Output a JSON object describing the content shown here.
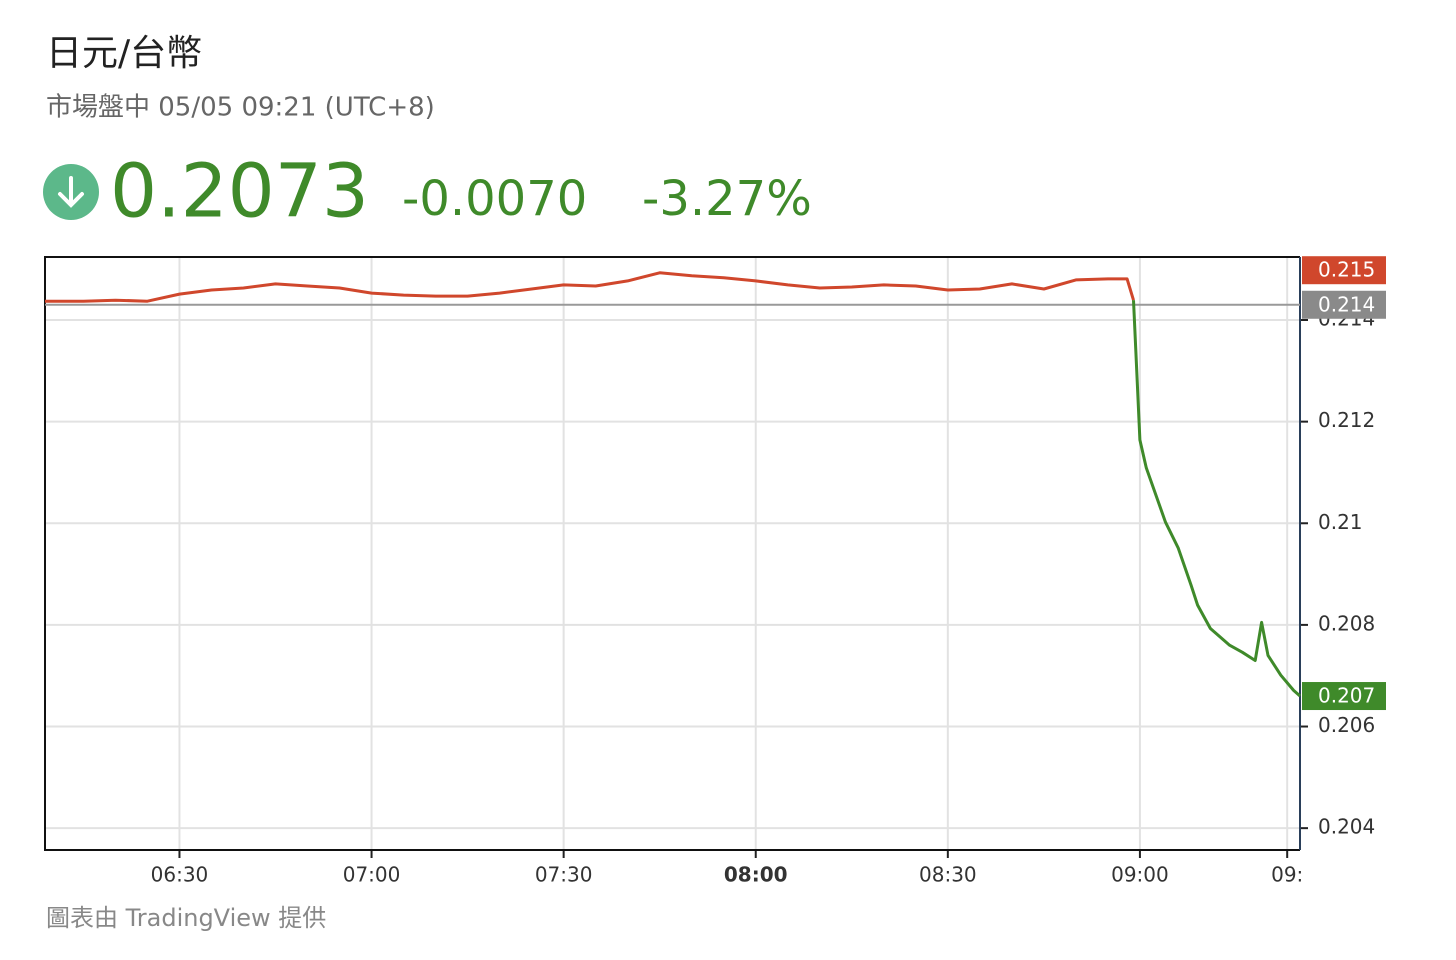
{
  "header": {
    "title": "日元/台幣",
    "subtitle": "市場盤中 05/05 09:21 (UTC+8)",
    "price": "0.2073",
    "change": "-0.0070",
    "change_percent": "-3.27%"
  },
  "chart_data": {
    "type": "line",
    "x": [
      "06:09",
      "06:15",
      "06:20",
      "06:25",
      "06:30",
      "06:35",
      "06:40",
      "06:45",
      "06:50",
      "06:55",
      "07:00",
      "07:05",
      "07:10",
      "07:15",
      "07:20",
      "07:25",
      "07:30",
      "07:35",
      "07:40",
      "07:45",
      "07:50",
      "07:55",
      "08:00",
      "08:05",
      "08:10",
      "08:15",
      "08:20",
      "08:25",
      "08:30",
      "08:35",
      "08:40",
      "08:45",
      "08:50",
      "08:55",
      "08:58",
      "08:59",
      "09:00",
      "09:01",
      "09:04",
      "09:06",
      "09:08",
      "09:09",
      "09:11",
      "09:14",
      "09:16",
      "09:18",
      "09:19",
      "09:20",
      "09:22",
      "09:24",
      "09:25"
    ],
    "series": [
      {
        "color": "#d0472c",
        "values": [
          0.21437,
          0.21437,
          0.21439,
          0.21437,
          0.21451,
          0.21459,
          0.21463,
          0.21471,
          0.21467,
          0.21463,
          0.21453,
          0.21449,
          0.21447,
          0.21447,
          0.21453,
          0.21461,
          0.21469,
          0.21467,
          0.21477,
          0.21493,
          0.21487,
          0.21483,
          0.21477,
          0.21469,
          0.21463,
          0.21465,
          0.21469,
          0.21467,
          0.21459,
          0.21461,
          0.21471,
          0.21461,
          0.21479,
          0.21481,
          0.21481,
          0.21439,
          null,
          null,
          null,
          null,
          null,
          null,
          null,
          null,
          null,
          null,
          null,
          null,
          null,
          null,
          null
        ]
      },
      {
        "color": "#3f8a2a",
        "values": [
          null,
          null,
          null,
          null,
          null,
          null,
          null,
          null,
          null,
          null,
          null,
          null,
          null,
          null,
          null,
          null,
          null,
          null,
          null,
          null,
          null,
          null,
          null,
          null,
          null,
          null,
          null,
          null,
          null,
          null,
          null,
          null,
          null,
          null,
          null,
          0.21439,
          0.21164,
          0.21109,
          0.21002,
          0.20951,
          0.20878,
          0.20839,
          0.20793,
          0.2076,
          0.20746,
          0.2073,
          0.20805,
          0.2074,
          0.20701,
          0.20671,
          0.2066
        ]
      }
    ],
    "xlim": [
      "06:09",
      "09:25"
    ],
    "xticks": [
      "06:30",
      "07:00",
      "07:30",
      "08:00",
      "08:30",
      "09:00",
      {
        "value": "09:23",
        "label": "09:"
      }
    ],
    "ylim": [
      0.20357,
      0.21524
    ],
    "yticks": [
      0.204,
      0.206,
      0.208,
      0.21,
      0.212,
      0.214
    ],
    "grid": true,
    "price_labels": [
      {
        "value": 0.21498,
        "label": "0.215",
        "color": "#d0472c"
      },
      {
        "value": 0.2143,
        "label": "0.214",
        "color": "#8a8a8a"
      },
      {
        "value": 0.2066,
        "label": "0.207",
        "color": "#3f8a2a"
      }
    ]
  },
  "footer": "圖表由 TradingView 提供"
}
